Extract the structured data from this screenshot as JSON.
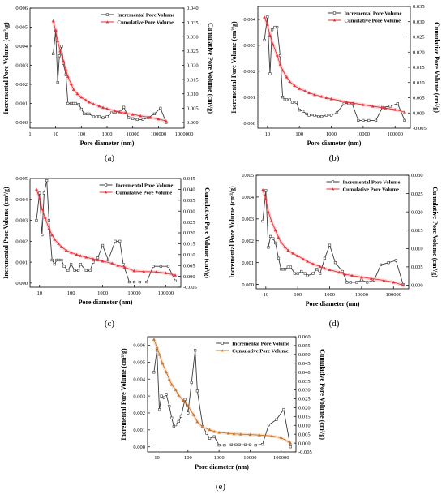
{
  "chart_data": [
    {
      "type": "line",
      "panel_label": "(a)",
      "xlabel": "Pore diameter (nm)",
      "ylabel": "Incremental Pore Volume (cm³/g)",
      "y2label": "Cumulative Pore Volume (cm³/g)",
      "x_scale": "log",
      "xlim": [
        1,
        1000000
      ],
      "xticks": [
        1,
        10,
        100,
        1000,
        10000,
        100000,
        1000000
      ],
      "xtick_labels": [
        "1",
        "10",
        "100",
        "1000",
        "10000",
        "100000",
        "1000000"
      ],
      "ylim": [
        -0.0003,
        0.006
      ],
      "yticks": [
        0,
        0.001,
        0.002,
        0.003,
        0.004,
        0.005,
        0.006
      ],
      "ytick_labels": [
        "0.000",
        "0.001",
        "0.002",
        "0.003",
        "0.004",
        "0.005",
        "0.006"
      ],
      "y2lim": [
        -0.002,
        0.04
      ],
      "y2ticks": [
        0,
        0.005,
        0.01,
        0.015,
        0.02,
        0.025,
        0.03,
        0.035,
        0.04
      ],
      "y2tick_labels": [
        "0.000",
        "0.005",
        "0.010",
        "0.015",
        "0.020",
        "0.025",
        "0.030",
        "0.035",
        "0.040"
      ],
      "legend": "top",
      "series": [
        {
          "name": "Incremental Pore Volume",
          "axis": "left",
          "color": "#3a3a3a",
          "marker": "square",
          "x": [
            8,
            10,
            12,
            14,
            17,
            20,
            25,
            30,
            40,
            50,
            60,
            80,
            100,
            130,
            170,
            200,
            300,
            400,
            500,
            700,
            1000,
            1500,
            2500,
            3500,
            4500,
            7000,
            10000,
            15000,
            25000,
            40000,
            70000,
            120000,
            200000
          ],
          "y": [
            0.0036,
            0.0048,
            0.0021,
            0.0035,
            0.004,
            0.0031,
            0.0025,
            0.001,
            0.001,
            0.001,
            0.001,
            0.00095,
            0.0007,
            0.00045,
            0.00045,
            0.00045,
            0.0003,
            0.0003,
            0.0003,
            0.00025,
            0.0003,
            0.0005,
            0.0005,
            0.00055,
            0.0008,
            0.00025,
            0.0002,
            0.00015,
            0.00015,
            0.00025,
            0.00045,
            0.00075,
            0.0
          ]
        },
        {
          "name": "Cumulative Pore Volume",
          "axis": "right",
          "color": "#e8313a",
          "marker": "triangle",
          "x": [
            8,
            10,
            12,
            15,
            20,
            25,
            30,
            40,
            50,
            70,
            100,
            150,
            200,
            300,
            500,
            700,
            1000,
            2000,
            3000,
            5000,
            10000,
            20000,
            50000,
            100000,
            200000
          ],
          "y": [
            0.0355,
            0.032,
            0.0285,
            0.025,
            0.0215,
            0.0185,
            0.016,
            0.0135,
            0.0115,
            0.01,
            0.0088,
            0.0078,
            0.0071,
            0.0064,
            0.0057,
            0.0052,
            0.0048,
            0.0041,
            0.0037,
            0.0033,
            0.0028,
            0.0023,
            0.0017,
            0.0012,
            0.0005
          ]
        }
      ]
    },
    {
      "type": "line",
      "panel_label": "(b)",
      "xlabel": "Pore diameter (nm)",
      "ylabel": "Incremental Pore Volume (cm³/g)",
      "y2label": "Cumulative Pore Volume (cm³/g)",
      "x_scale": "log",
      "xlim": [
        5,
        300000
      ],
      "xticks": [
        10,
        100,
        1000,
        10000,
        100000
      ],
      "xtick_labels": [
        "10",
        "100",
        "1000",
        "10000",
        "100000"
      ],
      "ylim": [
        -0.0002,
        0.0045
      ],
      "yticks": [
        0,
        0.001,
        0.002,
        0.003,
        0.004
      ],
      "ytick_labels": [
        "0.000",
        "0.001",
        "0.002",
        "0.003",
        "0.004"
      ],
      "y2lim": [
        -0.005,
        0.035
      ],
      "y2ticks": [
        -0.005,
        0,
        0.005,
        0.01,
        0.015,
        0.02,
        0.025,
        0.03,
        0.035
      ],
      "y2tick_labels": [
        "-0.005",
        "0.000",
        "0.005",
        "0.010",
        "0.015",
        "0.020",
        "0.025",
        "0.030",
        "0.035"
      ],
      "legend": "top",
      "series": [
        {
          "name": "Incremental Pore Volume",
          "axis": "left",
          "color": "#3a3a3a",
          "marker": "square",
          "x": [
            8,
            10,
            12,
            14,
            17,
            20,
            25,
            30,
            35,
            40,
            50,
            60,
            80,
            100,
            130,
            170,
            200,
            300,
            400,
            500,
            700,
            1000,
            1500,
            2500,
            3500,
            4500,
            7000,
            10000,
            15000,
            25000,
            40000,
            70000,
            120000,
            200000
          ],
          "y": [
            0.0032,
            0.0041,
            0.0019,
            0.0036,
            0.0037,
            0.0037,
            0.0026,
            0.001,
            0.0009,
            0.0009,
            0.0009,
            0.0008,
            0.0008,
            0.0005,
            0.00045,
            0.00035,
            0.0003,
            0.0003,
            0.00025,
            0.00025,
            0.0003,
            0.0003,
            0.0004,
            0.00075,
            0.00075,
            0.00075,
            0.0001,
            0.0001,
            0.0001,
            0.0001,
            0.0006,
            0.00065,
            0.00075,
            0.0001
          ]
        },
        {
          "name": "Cumulative Pore Volume",
          "axis": "right",
          "color": "#e8313a",
          "marker": "triangle",
          "x": [
            8,
            10,
            12,
            15,
            20,
            25,
            30,
            40,
            50,
            70,
            100,
            150,
            200,
            300,
            500,
            700,
            1000,
            2000,
            3000,
            5000,
            10000,
            20000,
            50000,
            100000,
            200000
          ],
          "y": [
            0.0315,
            0.029,
            0.0255,
            0.0225,
            0.019,
            0.016,
            0.014,
            0.0118,
            0.0103,
            0.009,
            0.008,
            0.0072,
            0.0066,
            0.006,
            0.0054,
            0.005,
            0.0046,
            0.004,
            0.0036,
            0.0032,
            0.0027,
            0.0022,
            0.0016,
            0.0011,
            0.0003
          ]
        }
      ]
    },
    {
      "type": "line",
      "panel_label": "(c)",
      "xlabel": "Pore diameter (nm)",
      "ylabel": "Incremental Pore Volume (cm³/g)",
      "y2label": "Cumulative Pore Volume (cm³/g)",
      "x_scale": "log",
      "xlim": [
        5,
        300000
      ],
      "xticks": [
        10,
        100,
        1000,
        10000,
        100000
      ],
      "xtick_labels": [
        "10",
        "100",
        "1000",
        "10000",
        "100000"
      ],
      "ylim": [
        -0.0002,
        0.005
      ],
      "yticks": [
        0,
        0.001,
        0.002,
        0.003,
        0.004,
        0.005
      ],
      "ytick_labels": [
        "0.000",
        "0.001",
        "0.002",
        "0.003",
        "0.004",
        "0.005"
      ],
      "y2lim": [
        -0.005,
        0.045
      ],
      "y2ticks": [
        -0.005,
        0,
        0.005,
        0.01,
        0.015,
        0.02,
        0.025,
        0.03,
        0.035,
        0.04,
        0.045
      ],
      "y2tick_labels": [
        "-0.005",
        "0.000",
        "0.005",
        "0.010",
        "0.015",
        "0.020",
        "0.025",
        "0.030",
        "0.035",
        "0.040",
        "0.045"
      ],
      "legend": "top",
      "series": [
        {
          "name": "Incremental Pore Volume",
          "axis": "left",
          "color": "#3a3a3a",
          "marker": "square",
          "x": [
            8,
            10,
            12,
            14,
            17,
            20,
            25,
            30,
            35,
            40,
            50,
            60,
            80,
            100,
            130,
            170,
            200,
            300,
            400,
            500,
            700,
            1000,
            1500,
            2500,
            3500,
            4500,
            7000,
            10000,
            15000,
            25000,
            40000,
            70000,
            120000,
            200000
          ],
          "y": [
            0.003,
            0.0043,
            0.0023,
            0.0043,
            0.0049,
            0.003,
            0.0011,
            0.0009,
            0.0011,
            0.0011,
            0.0011,
            0.0008,
            0.0006,
            0.0009,
            0.0006,
            0.0006,
            0.0009,
            0.0006,
            0.0006,
            0.001,
            0.0012,
            0.0018,
            0.0011,
            0.002,
            0.002,
            0.0009,
            5e-05,
            5e-05,
            5e-05,
            5e-05,
            0.0008,
            0.0008,
            0.0008,
            0.0001
          ]
        },
        {
          "name": "Cumulative Pore Volume",
          "axis": "right",
          "color": "#e8313a",
          "marker": "triangle",
          "x": [
            8,
            10,
            12,
            15,
            20,
            25,
            30,
            40,
            50,
            70,
            100,
            150,
            200,
            300,
            500,
            700,
            1000,
            2000,
            3000,
            5000,
            10000,
            20000,
            50000,
            100000,
            200000
          ],
          "y": [
            0.04,
            0.036,
            0.031,
            0.027,
            0.022,
            0.019,
            0.017,
            0.015,
            0.0135,
            0.012,
            0.011,
            0.01,
            0.0095,
            0.0088,
            0.008,
            0.0075,
            0.007,
            0.006,
            0.005,
            0.0042,
            0.0025,
            0.0022,
            0.002,
            0.0015,
            0.0005
          ]
        }
      ]
    },
    {
      "type": "line",
      "panel_label": "(d)",
      "xlabel": "Pore diameter (nm)",
      "ylabel": "Incremental Pore Volume (cm³/g)",
      "y2label": "Cumulative Pore Volume (cm³/g)",
      "x_scale": "log",
      "xlim": [
        5,
        300000
      ],
      "xticks": [
        10,
        100,
        1000,
        10000,
        100000
      ],
      "xtick_labels": [
        "10",
        "100",
        "1000",
        "10000",
        "100000"
      ],
      "ylim": [
        -0.0002,
        0.005
      ],
      "yticks": [
        0,
        0.001,
        0.002,
        0.003,
        0.004,
        0.005
      ],
      "ytick_labels": [
        "0.000",
        "0.001",
        "0.002",
        "0.003",
        "0.004",
        "0.005"
      ],
      "y2lim": [
        -0.001,
        0.03
      ],
      "y2ticks": [
        0,
        0.005,
        0.01,
        0.015,
        0.02,
        0.025,
        0.03
      ],
      "y2tick_labels": [
        "0.000",
        "0.005",
        "0.010",
        "0.015",
        "0.020",
        "0.025",
        "0.030"
      ],
      "legend": "top",
      "series": [
        {
          "name": "Incremental Pore Volume",
          "axis": "left",
          "color": "#3a3a3a",
          "marker": "square",
          "x": [
            8,
            10,
            12,
            14,
            17,
            20,
            25,
            30,
            35,
            40,
            50,
            60,
            80,
            100,
            130,
            170,
            200,
            300,
            400,
            500,
            700,
            1000,
            1500,
            2500,
            3500,
            4500,
            7000,
            10000,
            15000,
            25000,
            40000,
            70000,
            120000,
            200000
          ],
          "y": [
            0.0029,
            0.0043,
            0.0017,
            0.0022,
            0.0021,
            0.0019,
            0.0012,
            0.0007,
            0.0007,
            0.0007,
            0.0008,
            0.0008,
            0.0005,
            0.0005,
            0.0006,
            0.0005,
            0.0004,
            0.0005,
            0.0007,
            0.0005,
            0.0012,
            0.0018,
            0.001,
            0.0006,
            0.0001,
            0.0001,
            0.0001,
            0.0002,
            0.0001,
            0.0002,
            0.0009,
            0.001,
            0.0011,
            0.0
          ]
        },
        {
          "name": "Cumulative Pore Volume",
          "axis": "right",
          "color": "#e8313a",
          "marker": "triangle",
          "x": [
            8,
            10,
            12,
            15,
            20,
            25,
            30,
            40,
            50,
            70,
            100,
            150,
            200,
            300,
            500,
            700,
            1000,
            2000,
            3000,
            5000,
            10000,
            20000,
            50000,
            100000,
            200000
          ],
          "y": [
            0.026,
            0.0235,
            0.02,
            0.0175,
            0.015,
            0.013,
            0.0117,
            0.0104,
            0.0095,
            0.0087,
            0.008,
            0.0071,
            0.0065,
            0.0058,
            0.0051,
            0.0046,
            0.0042,
            0.0035,
            0.003,
            0.0026,
            0.0022,
            0.0018,
            0.0013,
            0.0008,
            0.0
          ]
        }
      ]
    },
    {
      "type": "line",
      "panel_label": "(e)",
      "xlabel": "Pore diameter (nm)",
      "ylabel": "Incremental Pore Volume (cm³/g)",
      "y2label": "Cumulative Pore Volume (cm³/g)",
      "x_scale": "log",
      "xlim": [
        5,
        300000
      ],
      "xticks": [
        10,
        100,
        1000,
        10000,
        100000
      ],
      "xtick_labels": [
        "10",
        "100",
        "1000",
        "10000",
        "100000"
      ],
      "ylim": [
        -0.0003,
        0.0065
      ],
      "yticks": [
        0,
        0.001,
        0.002,
        0.003,
        0.004,
        0.005,
        0.006
      ],
      "ytick_labels": [
        "0.000",
        "0.001",
        "0.002",
        "0.003",
        "0.004",
        "0.005",
        "0.006"
      ],
      "y2lim": [
        -0.005,
        0.06
      ],
      "y2ticks": [
        -0.005,
        0,
        0.005,
        0.01,
        0.015,
        0.02,
        0.025,
        0.03,
        0.035,
        0.04,
        0.045,
        0.05,
        0.055,
        0.06
      ],
      "y2tick_labels": [
        "-0.005",
        "0.000",
        "0.005",
        "0.010",
        "0.015",
        "0.020",
        "0.025",
        "0.030",
        "0.035",
        "0.040",
        "0.045",
        "0.050",
        "0.055",
        "0.060"
      ],
      "legend": "top",
      "series": [
        {
          "name": "Incremental Pore Volume",
          "axis": "left",
          "color": "#3a3a3a",
          "marker": "square",
          "x": [
            8,
            10,
            12,
            14,
            17,
            20,
            25,
            30,
            35,
            40,
            50,
            60,
            80,
            100,
            130,
            170,
            200,
            300,
            400,
            500,
            700,
            1000,
            1500,
            2500,
            3500,
            4500,
            7000,
            10000,
            15000,
            25000,
            40000,
            70000,
            120000,
            200000
          ],
          "y": [
            0.0044,
            0.0057,
            0.0022,
            0.003,
            0.0029,
            0.0031,
            0.0024,
            0.0017,
            0.0012,
            0.0013,
            0.0015,
            0.0018,
            0.0028,
            0.002,
            0.0038,
            0.0057,
            0.0033,
            0.0012,
            0.0008,
            0.0005,
            0.0006,
            0.0001,
            0.0001,
            0.00012,
            0.00012,
            0.00012,
            0.00012,
            0.00012,
            0.0001,
            0.00015,
            0.0013,
            0.0016,
            0.0022,
            0.0
          ]
        },
        {
          "name": "Cumulative Pore Volume",
          "axis": "right",
          "color": "#c8752a",
          "marker": "triangle",
          "x": [
            8,
            10,
            12,
            15,
            20,
            25,
            30,
            40,
            50,
            70,
            100,
            150,
            200,
            300,
            500,
            700,
            1000,
            2000,
            3000,
            5000,
            10000,
            20000,
            50000,
            100000,
            200000
          ],
          "y": [
            0.0585,
            0.054,
            0.05,
            0.045,
            0.04,
            0.036,
            0.033,
            0.03,
            0.027,
            0.024,
            0.021,
            0.016,
            0.012,
            0.009,
            0.0075,
            0.0065,
            0.006,
            0.0055,
            0.0052,
            0.005,
            0.0048,
            0.0045,
            0.004,
            0.003,
            0.0
          ]
        }
      ]
    }
  ]
}
